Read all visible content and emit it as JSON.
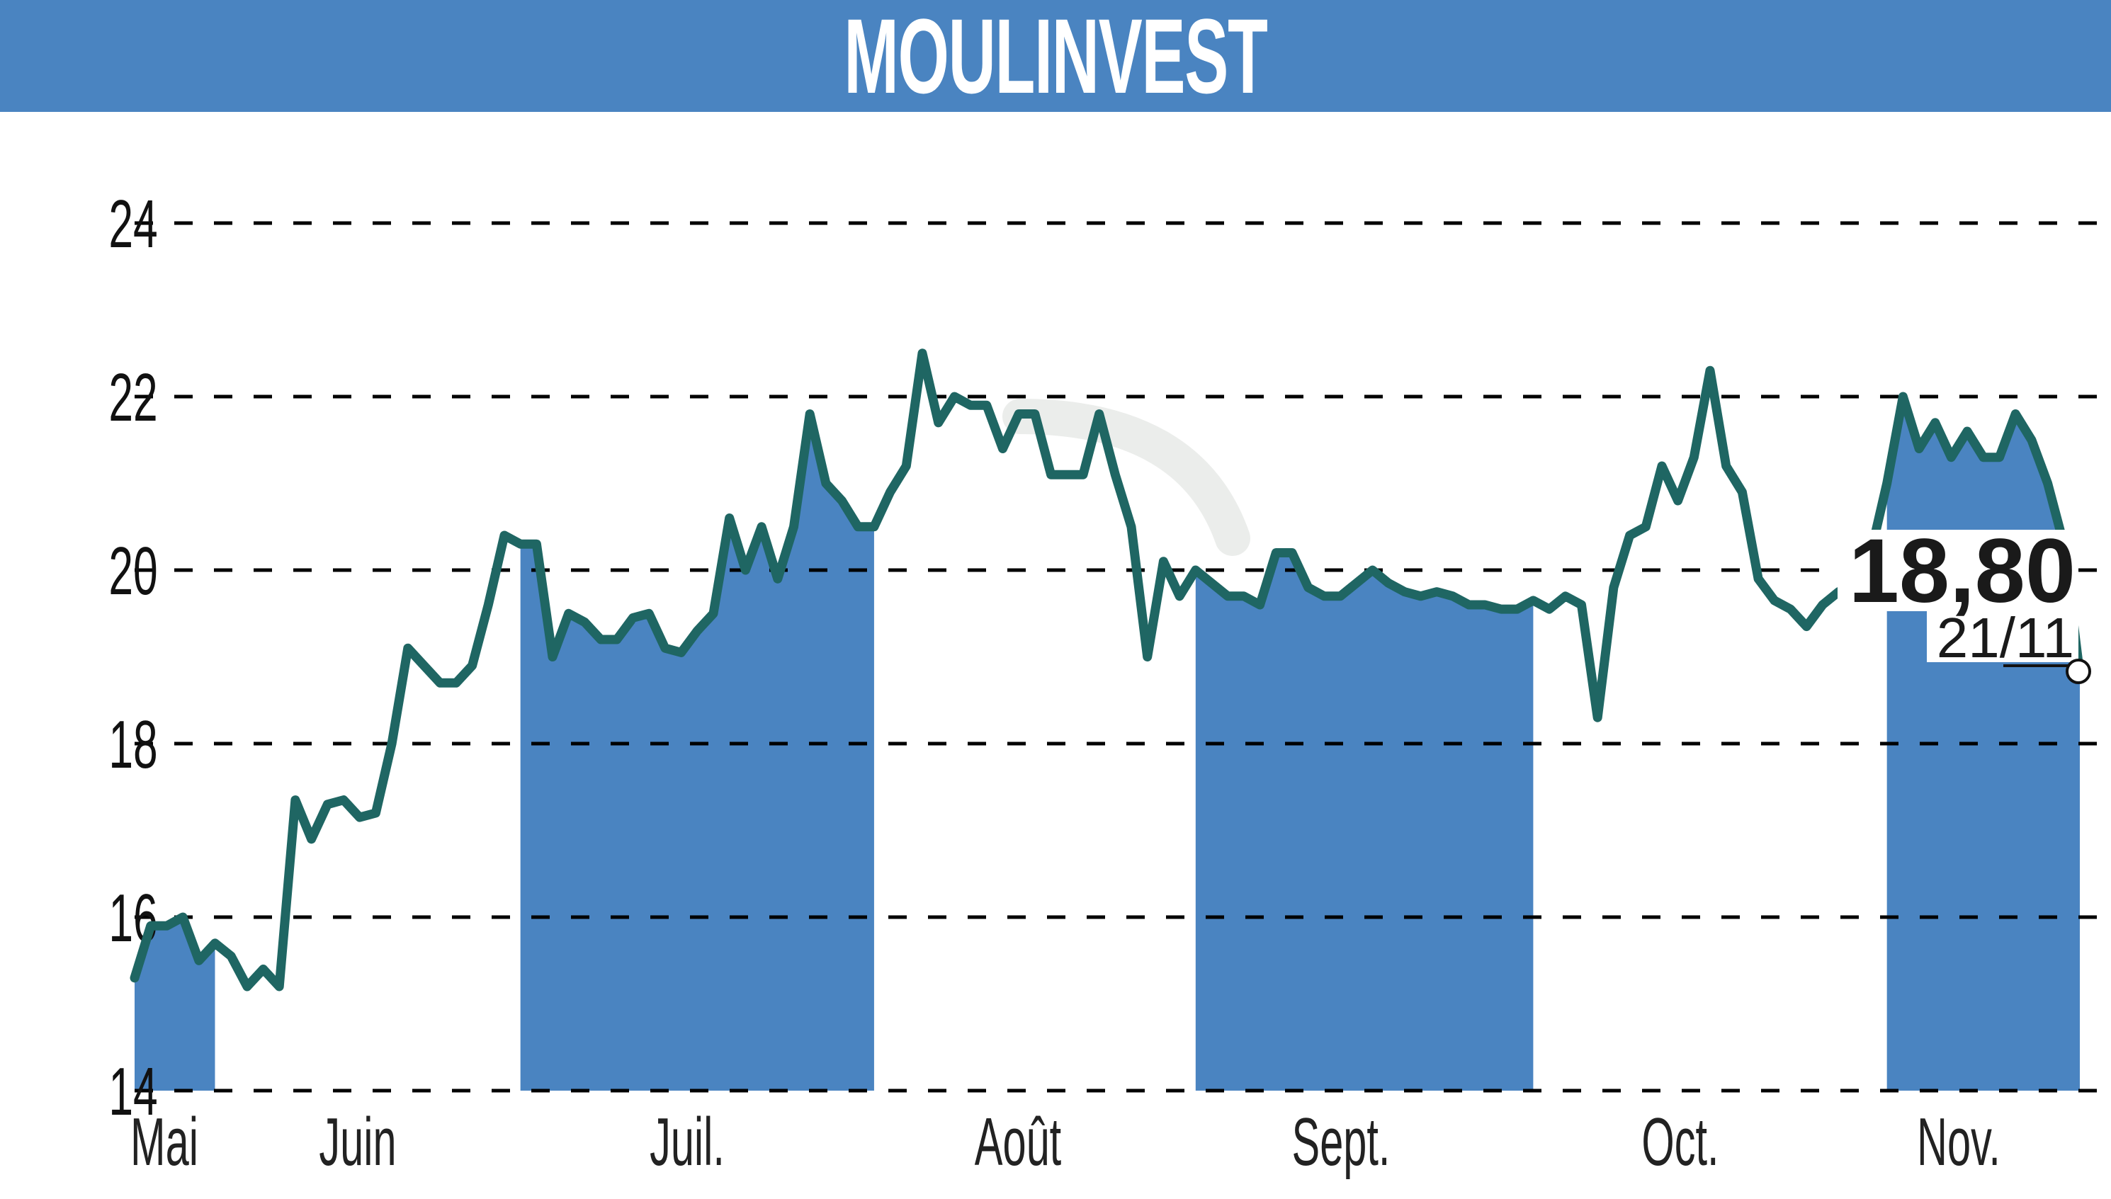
{
  "header": {
    "title": "MOULINVEST",
    "background_color": "#4a84c1"
  },
  "colors": {
    "line": "#1f6663",
    "month_band": "#4a84c1",
    "grid": "#000000",
    "header": "#4a84c1"
  },
  "last_value": {
    "value": "18,80",
    "date": "21/11"
  },
  "chart_data": {
    "type": "line",
    "title": "MOULINVEST",
    "xlabel": "",
    "ylabel": "",
    "ylim": [
      14,
      24
    ],
    "yticks": [
      14,
      16,
      18,
      20,
      22,
      24
    ],
    "ytick_labels": [
      "14",
      "16",
      "18",
      "20",
      "22",
      "24"
    ],
    "xtick_labels": [
      "Mai",
      "Juin",
      "Juil.",
      "Août",
      "Sept.",
      "Oct.",
      "Nov."
    ],
    "grid": "horizontal dashed",
    "legend": "none",
    "alternating_month_bands": [
      "Mai",
      "Juil.",
      "Sept.",
      "Nov."
    ],
    "last_point": {
      "date": "21/11",
      "value": 18.8
    },
    "series": [
      {
        "name": "MOULINVEST",
        "points": [
          {
            "month": "Mai",
            "value": 15.3
          },
          {
            "month": "Mai",
            "value": 15.9
          },
          {
            "month": "Mai",
            "value": 15.9
          },
          {
            "month": "Mai",
            "value": 16.0
          },
          {
            "month": "Mai",
            "value": 15.5
          },
          {
            "month": "Mai",
            "value": 15.7
          },
          {
            "month": "Juin",
            "value": 15.55
          },
          {
            "month": "Juin",
            "value": 15.2
          },
          {
            "month": "Juin",
            "value": 15.4
          },
          {
            "month": "Juin",
            "value": 15.2
          },
          {
            "month": "Juin",
            "value": 17.35
          },
          {
            "month": "Juin",
            "value": 16.9
          },
          {
            "month": "Juin",
            "value": 17.3
          },
          {
            "month": "Juin",
            "value": 17.35
          },
          {
            "month": "Juin",
            "value": 17.15
          },
          {
            "month": "Juin",
            "value": 17.2
          },
          {
            "month": "Juin",
            "value": 18.0
          },
          {
            "month": "Juin",
            "value": 19.1
          },
          {
            "month": "Juin",
            "value": 18.9
          },
          {
            "month": "Juin",
            "value": 18.7
          },
          {
            "month": "Juin",
            "value": 18.7
          },
          {
            "month": "Juin",
            "value": 18.9
          },
          {
            "month": "Juin",
            "value": 19.6
          },
          {
            "month": "Juin",
            "value": 20.4
          },
          {
            "month": "Juil.",
            "value": 20.3
          },
          {
            "month": "Juil.",
            "value": 20.3
          },
          {
            "month": "Juil.",
            "value": 19.0
          },
          {
            "month": "Juil.",
            "value": 19.5
          },
          {
            "month": "Juil.",
            "value": 19.4
          },
          {
            "month": "Juil.",
            "value": 19.2
          },
          {
            "month": "Juil.",
            "value": 19.2
          },
          {
            "month": "Juil.",
            "value": 19.45
          },
          {
            "month": "Juil.",
            "value": 19.5
          },
          {
            "month": "Juil.",
            "value": 19.1
          },
          {
            "month": "Juil.",
            "value": 19.05
          },
          {
            "month": "Juil.",
            "value": 19.3
          },
          {
            "month": "Juil.",
            "value": 19.5
          },
          {
            "month": "Juil.",
            "value": 20.6
          },
          {
            "month": "Juil.",
            "value": 20.0
          },
          {
            "month": "Juil.",
            "value": 20.5
          },
          {
            "month": "Juil.",
            "value": 19.9
          },
          {
            "month": "Juil.",
            "value": 20.5
          },
          {
            "month": "Juil.",
            "value": 21.8
          },
          {
            "month": "Juil.",
            "value": 21.0
          },
          {
            "month": "Juil.",
            "value": 20.8
          },
          {
            "month": "Juil.",
            "value": 20.5
          },
          {
            "month": "Juil.",
            "value": 20.5
          },
          {
            "month": "Août",
            "value": 20.9
          },
          {
            "month": "Août",
            "value": 21.2
          },
          {
            "month": "Août",
            "value": 22.5
          },
          {
            "month": "Août",
            "value": 21.7
          },
          {
            "month": "Août",
            "value": 22.0
          },
          {
            "month": "Août",
            "value": 21.9
          },
          {
            "month": "Août",
            "value": 21.9
          },
          {
            "month": "Août",
            "value": 21.4
          },
          {
            "month": "Août",
            "value": 21.8
          },
          {
            "month": "Août",
            "value": 21.8
          },
          {
            "month": "Août",
            "value": 21.1
          },
          {
            "month": "Août",
            "value": 21.1
          },
          {
            "month": "Août",
            "value": 21.1
          },
          {
            "month": "Août",
            "value": 21.8
          },
          {
            "month": "Août",
            "value": 21.1
          },
          {
            "month": "Août",
            "value": 20.5
          },
          {
            "month": "Août",
            "value": 19.0
          },
          {
            "month": "Août",
            "value": 20.1
          },
          {
            "month": "Août",
            "value": 19.7
          },
          {
            "month": "Sept.",
            "value": 20.0
          },
          {
            "month": "Sept.",
            "value": 19.85
          },
          {
            "month": "Sept.",
            "value": 19.7
          },
          {
            "month": "Sept.",
            "value": 19.7
          },
          {
            "month": "Sept.",
            "value": 19.6
          },
          {
            "month": "Sept.",
            "value": 20.2
          },
          {
            "month": "Sept.",
            "value": 20.2
          },
          {
            "month": "Sept.",
            "value": 19.8
          },
          {
            "month": "Sept.",
            "value": 19.7
          },
          {
            "month": "Sept.",
            "value": 19.7
          },
          {
            "month": "Sept.",
            "value": 19.85
          },
          {
            "month": "Sept.",
            "value": 20.0
          },
          {
            "month": "Sept.",
            "value": 19.85
          },
          {
            "month": "Sept.",
            "value": 19.75
          },
          {
            "month": "Sept.",
            "value": 19.7
          },
          {
            "month": "Sept.",
            "value": 19.75
          },
          {
            "month": "Sept.",
            "value": 19.7
          },
          {
            "month": "Sept.",
            "value": 19.6
          },
          {
            "month": "Sept.",
            "value": 19.6
          },
          {
            "month": "Sept.",
            "value": 19.55
          },
          {
            "month": "Sept.",
            "value": 19.55
          },
          {
            "month": "Sept.",
            "value": 19.65
          },
          {
            "month": "Oct.",
            "value": 19.55
          },
          {
            "month": "Oct.",
            "value": 19.7
          },
          {
            "month": "Oct.",
            "value": 19.6
          },
          {
            "month": "Oct.",
            "value": 18.3
          },
          {
            "month": "Oct.",
            "value": 19.8
          },
          {
            "month": "Oct.",
            "value": 20.4
          },
          {
            "month": "Oct.",
            "value": 20.5
          },
          {
            "month": "Oct.",
            "value": 21.2
          },
          {
            "month": "Oct.",
            "value": 20.8
          },
          {
            "month": "Oct.",
            "value": 21.3
          },
          {
            "month": "Oct.",
            "value": 22.3
          },
          {
            "month": "Oct.",
            "value": 21.2
          },
          {
            "month": "Oct.",
            "value": 20.9
          },
          {
            "month": "Oct.",
            "value": 19.9
          },
          {
            "month": "Oct.",
            "value": 19.65
          },
          {
            "month": "Oct.",
            "value": 19.55
          },
          {
            "month": "Oct.",
            "value": 19.35
          },
          {
            "month": "Oct.",
            "value": 19.6
          },
          {
            "month": "Oct.",
            "value": 19.75
          },
          {
            "month": "Oct.",
            "value": 19.85
          },
          {
            "month": "Oct.",
            "value": 20.2
          },
          {
            "month": "Nov.",
            "value": 21.0
          },
          {
            "month": "Nov.",
            "value": 22.0
          },
          {
            "month": "Nov.",
            "value": 21.4
          },
          {
            "month": "Nov.",
            "value": 21.7
          },
          {
            "month": "Nov.",
            "value": 21.3
          },
          {
            "month": "Nov.",
            "value": 21.6
          },
          {
            "month": "Nov.",
            "value": 21.3
          },
          {
            "month": "Nov.",
            "value": 21.3
          },
          {
            "month": "Nov.",
            "value": 21.8
          },
          {
            "month": "Nov.",
            "value": 21.5
          },
          {
            "month": "Nov.",
            "value": 21.0
          },
          {
            "month": "Nov.",
            "value": 20.3
          },
          {
            "month": "Nov.",
            "value": 18.8
          }
        ]
      }
    ]
  }
}
